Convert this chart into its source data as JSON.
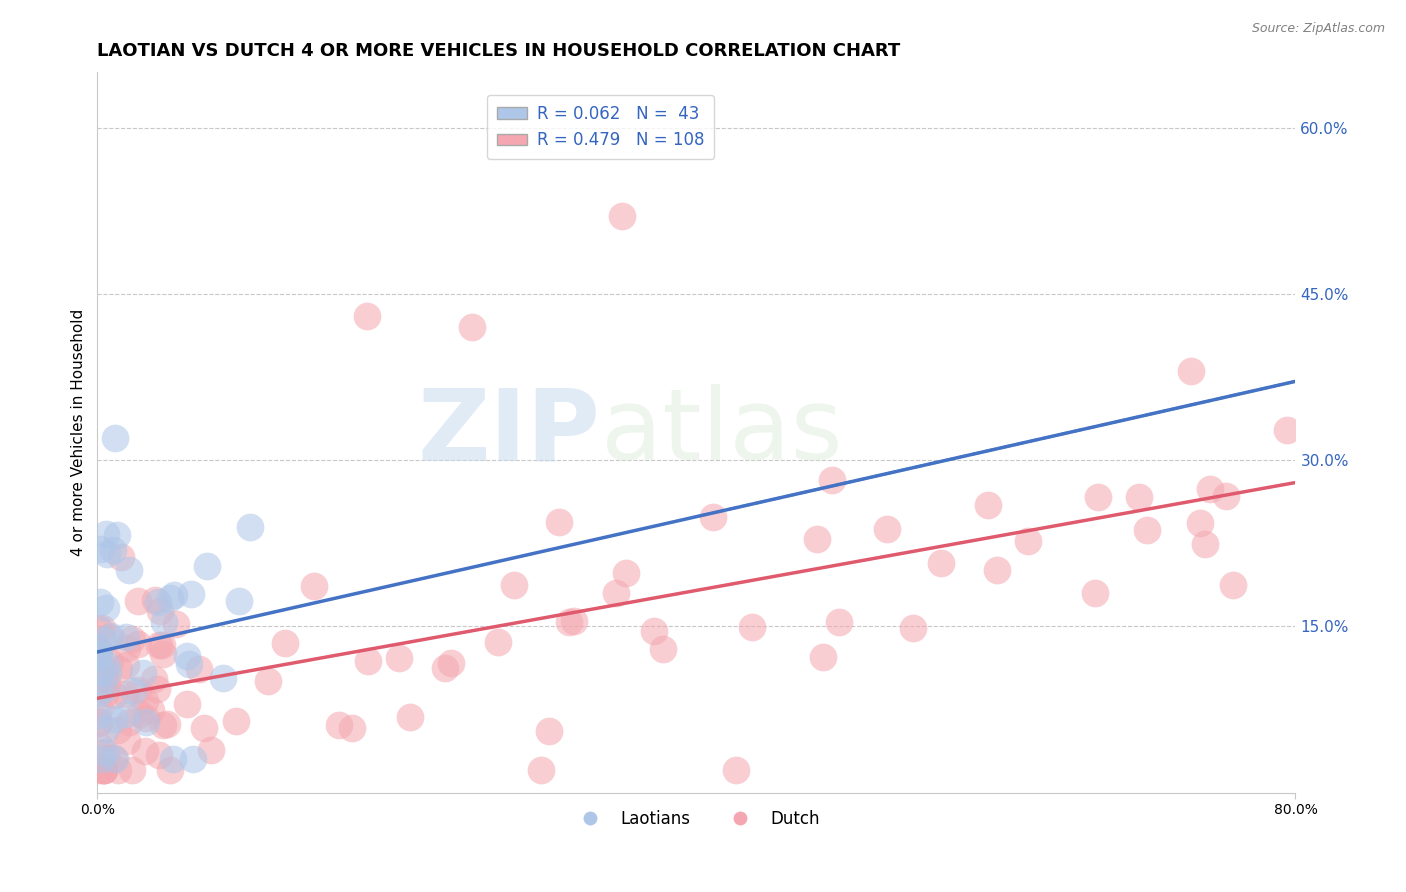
{
  "title": "LAOTIAN VS DUTCH 4 OR MORE VEHICLES IN HOUSEHOLD CORRELATION CHART",
  "source_text": "Source: ZipAtlas.com",
  "ylabel": "4 or more Vehicles in Household",
  "xlim": [
    0.0,
    0.8
  ],
  "ylim": [
    0.0,
    0.65
  ],
  "yticks_right": [
    0.15,
    0.3,
    0.45,
    0.6
  ],
  "ytick_right_labels": [
    "15.0%",
    "30.0%",
    "45.0%",
    "60.0%"
  ],
  "watermark_zip": "ZIP",
  "watermark_atlas": "atlas",
  "laotian_color": "#aec6e8",
  "dutch_color": "#f4a7b0",
  "laotian_line_color": "#4472c4",
  "dutch_line_color": "#e05a6e",
  "legend_color": "#3465c0",
  "laotian_R": 0.062,
  "laotian_N": 43,
  "dutch_R": 0.479,
  "dutch_N": 108,
  "background_color": "#ffffff",
  "grid_color": "#c8c8c8",
  "title_fontsize": 13,
  "axis_label_fontsize": 11,
  "tick_fontsize": 10,
  "scatter_size": 400,
  "scatter_alpha": 0.55,
  "scatter_linewidth": 1.0
}
